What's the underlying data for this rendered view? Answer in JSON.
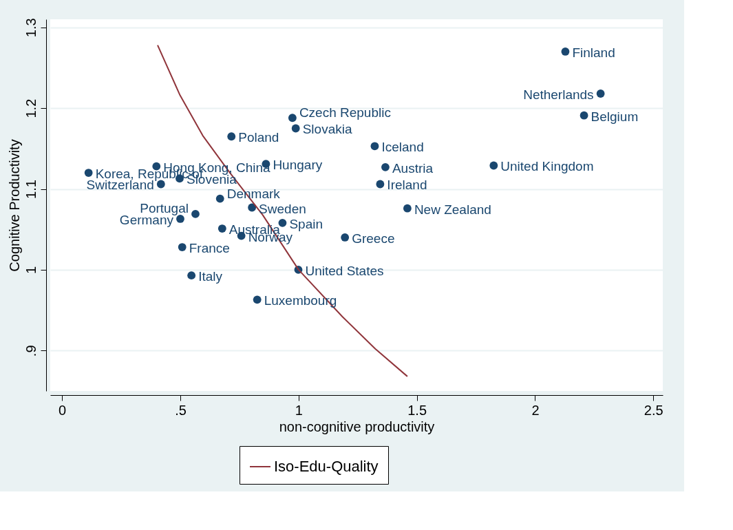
{
  "chart_data": {
    "type": "scatter",
    "xlabel": "non-cognitive productivity",
    "ylabel": "Cognitive Productivity",
    "xlim": [
      -0.05,
      2.54
    ],
    "ylim": [
      0.85,
      1.31
    ],
    "xticks": [
      0,
      {
        "value": 0.5,
        "label": ".5"
      },
      1,
      1.5,
      2,
      2.5
    ],
    "yticks": [
      {
        "value": 0.9,
        "label": ".9"
      },
      1,
      1.1,
      1.2,
      1.3
    ],
    "grid": "y",
    "legend": "bottom",
    "series": [
      {
        "marker": "circle",
        "color": "#1a476f",
        "x": [
          2.128,
          2.277,
          2.207,
          0.974,
          0.988,
          0.716,
          1.322,
          0.862,
          1.367,
          1.825,
          0.112,
          0.399,
          0.497,
          0.418,
          1.345,
          0.668,
          0.803,
          1.46,
          0.564,
          0.5,
          0.932,
          0.677,
          0.758,
          1.196,
          0.508,
          0.999,
          0.547,
          0.825
        ],
        "values": [
          1.27,
          1.218,
          1.191,
          1.188,
          1.175,
          1.165,
          1.153,
          1.131,
          1.127,
          1.129,
          1.12,
          1.128,
          1.113,
          1.106,
          1.106,
          1.088,
          1.077,
          1.076,
          1.069,
          1.063,
          1.058,
          1.051,
          1.042,
          1.04,
          1.028,
          1.0,
          0.993,
          0.963
        ]
      },
      {
        "type": "line",
        "name": "Iso-Edu-Quality",
        "color": "#90353b",
        "line_style": "solid",
        "x": [
          0.404,
          0.497,
          0.595,
          0.707,
          0.848,
          1.0,
          1.185,
          1.325,
          1.46
        ],
        "values": [
          1.278,
          1.217,
          1.166,
          1.121,
          1.068,
          1.0,
          0.942,
          0.902,
          0.868
        ]
      }
    ],
    "annotations": [
      {
        "text": "Finland",
        "x": 2.128,
        "y": 1.27
      },
      {
        "text": "Netherlands",
        "x": 2.277,
        "y": 1.218
      },
      {
        "text": "Belgium",
        "x": 2.207,
        "y": 1.191
      },
      {
        "text": "Czech Republic",
        "x": 0.974,
        "y": 1.188
      },
      {
        "text": "Slovakia",
        "x": 0.988,
        "y": 1.175
      },
      {
        "text": "Poland",
        "x": 0.716,
        "y": 1.165
      },
      {
        "text": "Iceland",
        "x": 1.322,
        "y": 1.153
      },
      {
        "text": "Hungary",
        "x": 0.862,
        "y": 1.131
      },
      {
        "text": "Austria",
        "x": 1.367,
        "y": 1.127
      },
      {
        "text": "United Kingdom",
        "x": 1.825,
        "y": 1.129
      },
      {
        "text": "Korea, Republic of",
        "x": 0.112,
        "y": 1.12
      },
      {
        "text": "Hong Kong, China",
        "x": 0.399,
        "y": 1.128
      },
      {
        "text": "Slovenia",
        "x": 0.497,
        "y": 1.113
      },
      {
        "text": "Switzerland",
        "x": 0.418,
        "y": 1.106
      },
      {
        "text": "Ireland",
        "x": 1.345,
        "y": 1.106
      },
      {
        "text": "Denmark",
        "x": 0.668,
        "y": 1.088
      },
      {
        "text": "Sweden",
        "x": 0.803,
        "y": 1.077
      },
      {
        "text": "New Zealand",
        "x": 1.46,
        "y": 1.076
      },
      {
        "text": "Portugal",
        "x": 0.564,
        "y": 1.069
      },
      {
        "text": "Germany",
        "x": 0.5,
        "y": 1.063
      },
      {
        "text": "Spain",
        "x": 0.932,
        "y": 1.058
      },
      {
        "text": "Australia",
        "x": 0.677,
        "y": 1.051
      },
      {
        "text": "Norway",
        "x": 0.758,
        "y": 1.042
      },
      {
        "text": "Greece",
        "x": 1.196,
        "y": 1.04
      },
      {
        "text": "France",
        "x": 0.508,
        "y": 1.028
      },
      {
        "text": "United States",
        "x": 0.999,
        "y": 1.0
      },
      {
        "text": "Italy",
        "x": 0.547,
        "y": 0.993
      },
      {
        "text": "Luxembourg",
        "x": 0.825,
        "y": 0.963
      }
    ]
  }
}
